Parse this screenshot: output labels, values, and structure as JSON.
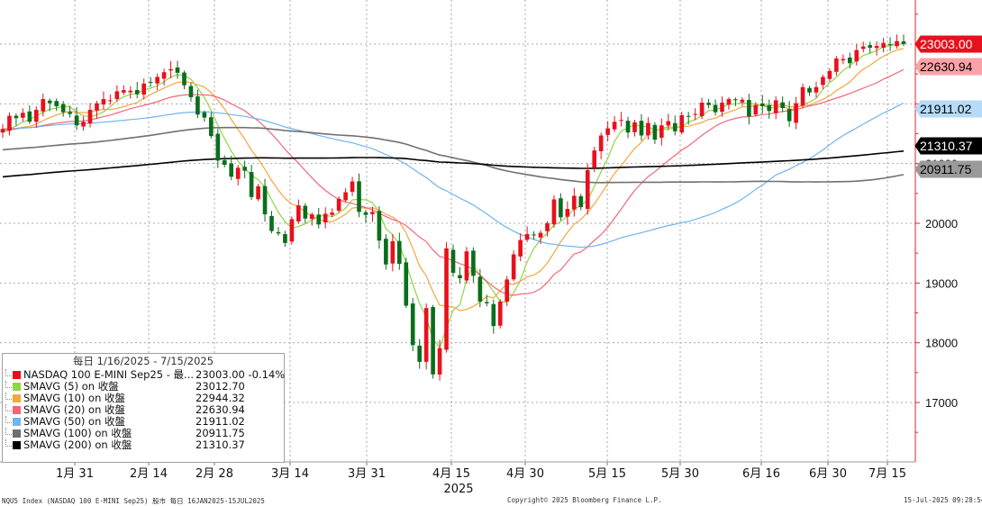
{
  "chart_data": {
    "type": "candlestick",
    "x_axis": {
      "month_ticks": [
        "1月 31",
        "2月 14",
        "2月 28",
        "3月 14",
        "3月 31",
        "4月 15",
        "4月 30",
        "5月 15",
        "5月 30",
        "6月 16",
        "6月 30",
        "7月 15"
      ],
      "year_label": "2025"
    },
    "y_axis": {
      "ticks": [
        17000,
        18000,
        19000,
        20000,
        21000,
        22000,
        23000
      ],
      "range": [
        16000,
        23750
      ],
      "position": "right",
      "grid": "dotted"
    },
    "right_tags": [
      {
        "text": "23003.00",
        "value": 23003.0,
        "bg": "#e8101c",
        "fg": "#ffffff",
        "border": "#e8101c"
      },
      {
        "text": "22630.94",
        "value": 22630.94,
        "bg": "#f9a3a8",
        "fg": "#000000",
        "border": "#f9a3a8"
      },
      {
        "text": "21911.02",
        "value": 21911.02,
        "bg": "#b5dbf8",
        "fg": "#000000",
        "border": "#b5dbf8"
      },
      {
        "text": "21310.37",
        "value": 21310.37,
        "bg": "#000000",
        "fg": "#ffffff",
        "border": "#000000"
      },
      {
        "text": "20911.75",
        "value": 20911.75,
        "bg": "#9a9a9a",
        "fg": "#000000",
        "border": "#9a9a9a"
      }
    ],
    "series": [
      {
        "name": "NASDAQ 100 E-MINI Sep25 - 最...",
        "type": "candlestick",
        "last": "23003.00",
        "change": "-0.14%",
        "up_color": "#e8101c",
        "down_color": "#0a6e1c",
        "closes": [
          21580,
          21800,
          21760,
          21850,
          21700,
          21900,
          22080,
          22010,
          21960,
          21860,
          21830,
          21640,
          21700,
          21900,
          22010,
          22080,
          22060,
          22210,
          22230,
          22220,
          22160,
          22340,
          22360,
          22450,
          22530,
          22580,
          22520,
          22310,
          22110,
          21820,
          21770,
          21460,
          21050,
          20980,
          20780,
          20930,
          20880,
          20440,
          20620,
          20150,
          19870,
          19830,
          19670,
          20070,
          20300,
          20080,
          20150,
          19980,
          20160,
          20180,
          20410,
          20520,
          20700,
          20190,
          20140,
          20190,
          19710,
          19310,
          19700,
          19320,
          18620,
          17960,
          17680,
          18580,
          17470,
          17910,
          19580,
          19170,
          19080,
          19530,
          19120,
          18690,
          18660,
          18280,
          18690,
          19060,
          19480,
          19720,
          19820,
          19800,
          19840,
          20000,
          20400,
          20100,
          20240,
          20460,
          20270,
          20890,
          21220,
          21470,
          21590,
          21700,
          21730,
          21520,
          21690,
          21470,
          21680,
          21400,
          21640,
          21710,
          21540,
          21810,
          21790,
          21830,
          22020,
          21980,
          21860,
          22020,
          22080,
          22060,
          22070,
          21790,
          21980,
          21960,
          21880,
          22060,
          21930,
          21710,
          22010,
          22280,
          22190,
          22280,
          22450,
          22550,
          22760,
          22750,
          22680,
          22900,
          22960,
          22940,
          22970,
          23020,
          22990,
          23050,
          23003
        ],
        "highs_offsets": "derived",
        "note": ""
      },
      {
        "name": "SMAVG (5)  on 收盤",
        "value": "23012.70",
        "color": "#8fd645",
        "period": 5
      },
      {
        "name": "SMAVG (10)  on 收盤",
        "value": "22944.32",
        "color": "#f5a640",
        "period": 10
      },
      {
        "name": "SMAVG (20)  on 收盤",
        "value": "22630.94",
        "color": "#f36678",
        "period": 20
      },
      {
        "name": "SMAVG (50)  on 收盤",
        "value": "21911.02",
        "color": "#6fb5ee",
        "period": 50
      },
      {
        "name": "SMAVG (100)  on 收盤",
        "value": "20911.75",
        "color": "#707070",
        "period": 100
      },
      {
        "name": "SMAVG (200)  on 收盤",
        "value": "21310.37",
        "color": "#000000",
        "period": 200
      }
    ],
    "legend": {
      "title": "每日 1/16/2025 - 7/15/2025",
      "placement": "bottom-left"
    }
  },
  "footer": {
    "left": "NQU5 Index (NASDAQ 100 E-MINI Sep25) 股市  每日 16JAN2025-15JUL2025",
    "center": "Copyright© 2025 Bloomberg Finance L.P.",
    "right": "15-Jul-2025 09:28:54"
  },
  "colors": {
    "grid": "#aaaaaa",
    "axis": "#d9272e",
    "candle_up": "#e8101c",
    "candle_down": "#0a6e1c"
  }
}
